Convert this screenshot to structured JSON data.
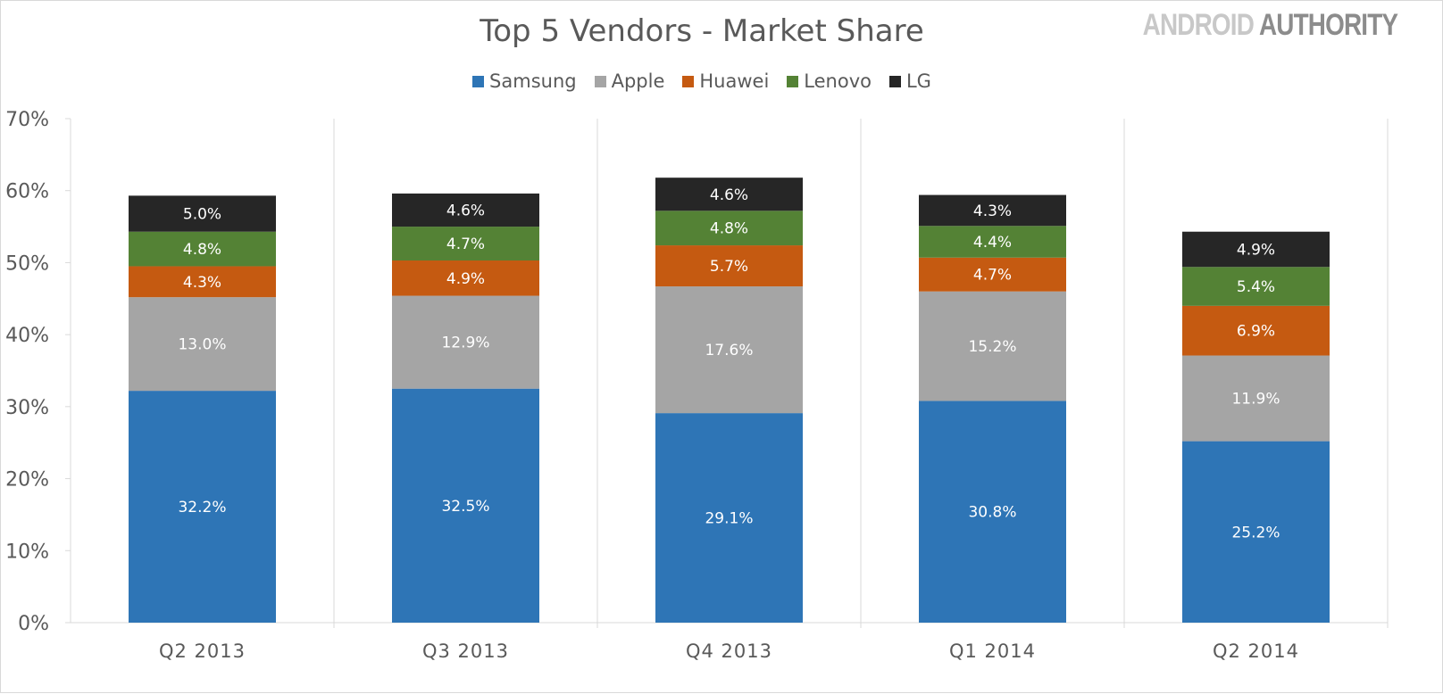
{
  "logo": {
    "part1": "ANDROID",
    "part2": "AUTHORITY"
  },
  "chart_data": {
    "type": "bar",
    "stacked": true,
    "title": "Top 5 Vendors - Market Share",
    "xlabel": "",
    "ylabel": "",
    "ylim": [
      0,
      70
    ],
    "yticks": [
      "0%",
      "10%",
      "20%",
      "30%",
      "40%",
      "50%",
      "60%",
      "70%"
    ],
    "grid": false,
    "legend_position": "top",
    "categories": [
      "Q2 2013",
      "Q3 2013",
      "Q4 2013",
      "Q1 2014",
      "Q2 2014"
    ],
    "series": [
      {
        "name": "Samsung",
        "color": "#2E75B6",
        "values": [
          32.2,
          32.5,
          29.1,
          30.8,
          25.2
        ]
      },
      {
        "name": "Apple",
        "color": "#A5A5A5",
        "values": [
          13.0,
          12.9,
          17.6,
          15.2,
          11.9
        ]
      },
      {
        "name": "Huawei",
        "color": "#C55A11",
        "values": [
          4.3,
          4.9,
          5.7,
          4.7,
          6.9
        ]
      },
      {
        "name": "Lenovo",
        "color": "#548235",
        "values": [
          4.8,
          4.7,
          4.8,
          4.4,
          5.4
        ]
      },
      {
        "name": "LG",
        "color": "#262626",
        "values": [
          5.0,
          4.6,
          4.6,
          4.3,
          4.9
        ]
      }
    ]
  }
}
